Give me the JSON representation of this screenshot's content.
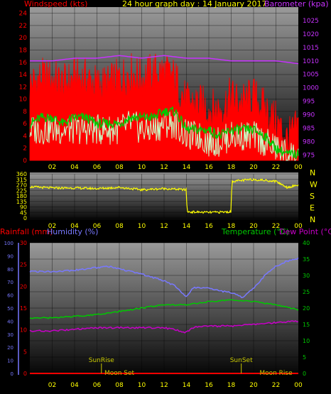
{
  "title": "24 hour graph day : 14 January 2017",
  "colors": {
    "background": "#000000",
    "title": "#ffff00",
    "wind_gust": "#ff0000",
    "wind_avg": "#00c800",
    "wind_latest": "#c8ffc8",
    "barometer": "#c832ff",
    "direction": "#ffff00",
    "rain": "#ff0000",
    "humidity": "#7878ff",
    "temperature": "#00c800",
    "dewpoint": "#c800c8",
    "sun_moon": "#c8c800",
    "compass": "#ffff00",
    "time_ticks": "#ffff00"
  },
  "time_labels": [
    "02",
    "04",
    "06",
    "08",
    "10",
    "12",
    "14",
    "16",
    "18",
    "20",
    "22",
    "00"
  ],
  "chart_data": [
    {
      "type": "line",
      "title": "24 hour graph day : 14 January 2017",
      "series": [
        {
          "name": "Windspeed (kts)",
          "axis": "left",
          "role": "gust",
          "x": [
            0,
            1,
            2,
            3,
            4,
            5,
            6,
            7,
            8,
            9,
            10,
            11,
            12,
            13,
            14,
            15,
            16,
            17,
            18,
            19,
            20,
            21,
            22,
            23,
            24
          ],
          "values": [
            12,
            13,
            13,
            12,
            13,
            13,
            12,
            12,
            13,
            14,
            13,
            14,
            14,
            13,
            9,
            9,
            8,
            8,
            10,
            9,
            10,
            8,
            6,
            3,
            5
          ]
        },
        {
          "name": "Windspeed average",
          "axis": "left",
          "role": "average",
          "x": [
            0,
            1,
            2,
            3,
            4,
            5,
            6,
            7,
            8,
            9,
            10,
            11,
            12,
            13,
            14,
            15,
            16,
            17,
            18,
            19,
            20,
            21,
            22,
            23,
            24
          ],
          "values": [
            6,
            7,
            7,
            6,
            7,
            7,
            6,
            6,
            6,
            7,
            7,
            7,
            8,
            8,
            5,
            5,
            5,
            4,
            5,
            5,
            5,
            4,
            2,
            1,
            1
          ]
        },
        {
          "name": "Windspeed latest",
          "axis": "left",
          "role": "latest",
          "x": [
            0,
            1,
            2,
            3,
            4,
            5,
            6,
            7,
            8,
            9,
            10,
            11,
            12,
            13,
            14,
            15,
            16,
            17,
            18,
            19,
            20,
            21,
            22,
            23,
            24
          ],
          "values": [
            5,
            5,
            5,
            5,
            5,
            5,
            5,
            5,
            5,
            6,
            5,
            5,
            6,
            6,
            4,
            4,
            3,
            3,
            4,
            4,
            4,
            3,
            2,
            1,
            1
          ]
        },
        {
          "name": "Barometer (kpa)",
          "axis": "right",
          "x": [
            0,
            2,
            4,
            6,
            8,
            10,
            12,
            14,
            16,
            18,
            20,
            22,
            24
          ],
          "values": [
            1010,
            1010,
            1011,
            1011,
            1012,
            1011,
            1012,
            1011,
            1011,
            1010,
            1010,
            1010,
            1009
          ]
        }
      ],
      "left_axis": {
        "label": "Windspeed (kts)",
        "ticks": [
          0,
          2,
          4,
          6,
          8,
          10,
          12,
          14,
          16,
          18,
          20,
          22,
          24
        ],
        "ylim": [
          0,
          25
        ]
      },
      "right_axis": {
        "label": "Barometer (kpa)",
        "ticks": [
          975,
          980,
          985,
          990,
          995,
          1000,
          1005,
          1010,
          1015,
          1020,
          1025
        ],
        "ylim": [
          973,
          1030
        ]
      },
      "x_ticks": [
        "02",
        "04",
        "06",
        "08",
        "10",
        "12",
        "14",
        "16",
        "18",
        "20",
        "22",
        "00"
      ]
    },
    {
      "type": "line",
      "series": [
        {
          "name": "Wind direction",
          "axis": "left",
          "x": [
            0,
            2,
            4,
            6,
            8,
            10,
            12,
            14,
            14.05,
            16,
            18,
            18.05,
            20,
            22,
            23,
            24
          ],
          "values": [
            255,
            245,
            245,
            240,
            250,
            230,
            240,
            230,
            50,
            45,
            50,
            300,
            315,
            300,
            250,
            270
          ]
        }
      ],
      "left_axis": {
        "ticks": [
          0,
          45,
          90,
          135,
          180,
          225,
          270,
          315,
          360
        ],
        "ylim": [
          0,
          360
        ]
      },
      "compass": [
        "N",
        "W",
        "S",
        "E",
        "N"
      ],
      "x_ticks": [
        "02",
        "04",
        "06",
        "08",
        "10",
        "12",
        "14",
        "16",
        "18",
        "20",
        "22",
        "00"
      ]
    },
    {
      "type": "line",
      "series": [
        {
          "name": "Rainfall (mm)",
          "axis": "left2",
          "x": [
            0,
            24
          ],
          "values": [
            0,
            0
          ]
        },
        {
          "name": "Humidity (%)",
          "axis": "left1",
          "x": [
            0,
            2,
            4,
            6,
            7,
            8,
            10,
            12,
            13,
            14,
            14.5,
            15,
            16,
            17,
            18,
            19,
            20,
            21,
            22,
            23,
            24
          ],
          "values": [
            78,
            78,
            79,
            81,
            82,
            80,
            76,
            71,
            67,
            58,
            65,
            66,
            65,
            63,
            62,
            58,
            65,
            75,
            82,
            86,
            88
          ]
        },
        {
          "name": "Temperature (°C)",
          "axis": "right",
          "x": [
            0,
            2,
            4,
            6,
            8,
            10,
            12,
            14,
            16,
            18,
            20,
            22,
            24
          ],
          "values": [
            17,
            17,
            17.5,
            18,
            19,
            20,
            21,
            21,
            22,
            22.5,
            22,
            21,
            19.5
          ]
        },
        {
          "name": "Dew Point (°C)",
          "axis": "right",
          "x": [
            0,
            2,
            4,
            6,
            8,
            10,
            12,
            13.5,
            14,
            14.5,
            16,
            18,
            20,
            22,
            24
          ],
          "values": [
            13,
            13,
            13.5,
            14,
            14,
            14,
            14,
            13,
            12.5,
            14,
            14.5,
            14.5,
            15,
            15.5,
            16
          ]
        }
      ],
      "left1_axis": {
        "label": "Humidity (%)",
        "ticks": [
          0,
          10,
          20,
          30,
          40,
          50,
          60,
          70,
          80,
          90,
          100
        ],
        "ylim": [
          0,
          100
        ]
      },
      "left2_axis": {
        "label": "Rainfall (mm)",
        "ticks": [
          0,
          5,
          10,
          15,
          20,
          25,
          30
        ],
        "ylim": [
          0,
          30
        ]
      },
      "right_axis": {
        "label": "Temperature (°C)",
        "label2": "Dew Point (°C)",
        "ticks": [
          0,
          5,
          10,
          15,
          20,
          25,
          30,
          35,
          40
        ],
        "ylim": [
          0,
          40
        ]
      },
      "annotations": [
        {
          "text": "SunRise",
          "x": 6.4
        },
        {
          "text": "SunSet",
          "x": 18.9
        },
        {
          "text": "Moon Set",
          "x": 8.0
        },
        {
          "text": "Moon Rise",
          "x": 22.0
        }
      ],
      "x_ticks": [
        "02",
        "04",
        "06",
        "08",
        "10",
        "12",
        "14",
        "16",
        "18",
        "20",
        "22",
        "00"
      ]
    }
  ]
}
